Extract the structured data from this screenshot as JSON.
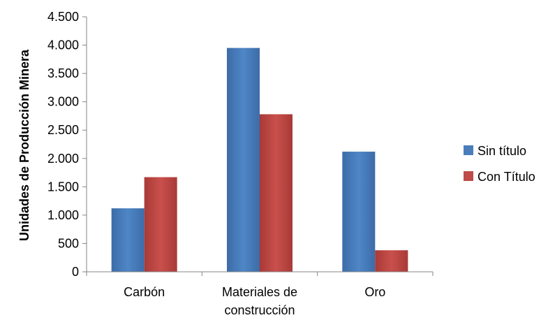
{
  "chart_data": {
    "type": "bar",
    "categories": [
      [
        "Carbón"
      ],
      [
        "Materiales de",
        "construcción"
      ],
      [
        "Oro"
      ]
    ],
    "series": [
      {
        "name": "Sin título",
        "values": [
          1120,
          3950,
          2120
        ],
        "color": "#4A7EBB"
      },
      {
        "name": "Con Título",
        "values": [
          1670,
          2780,
          380
        ],
        "color": "#BE4B48"
      }
    ],
    "ylabel": "Unidades de Producción Minera",
    "ylim": [
      0,
      4500
    ],
    "yticks": [
      0,
      500,
      1000,
      1500,
      2000,
      2500,
      3000,
      3500,
      4000,
      4500
    ],
    "ytick_labels": [
      "0",
      "500",
      "1.000",
      "1.500",
      "2.000",
      "2.500",
      "3.000",
      "3.500",
      "4.000",
      "4.500"
    ],
    "grid": false,
    "legend_position": "right"
  }
}
